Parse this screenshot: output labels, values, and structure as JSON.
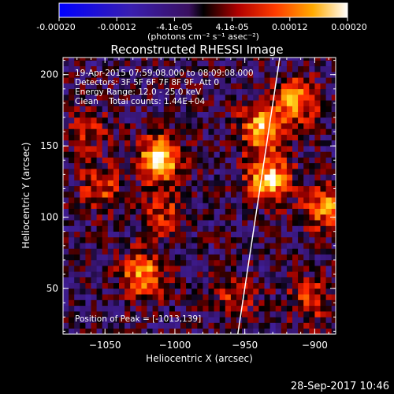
{
  "colorbar": {
    "tick_labels": [
      "-0.00020",
      "-0.00012",
      "-4.1e-05",
      "4.1e-05",
      "0.00012",
      "0.00020"
    ],
    "min": -0.0002,
    "max": 0.0002,
    "unit_label": "(photons cm⁻² s⁻¹ asec⁻²)"
  },
  "chart_data": {
    "type": "heatmap",
    "title": "Reconstructed RHESSI Image",
    "xlabel": "Heliocentric X (arcsec)",
    "ylabel": "Heliocentric Y (arcsec)",
    "xlim": [
      -1080,
      -885
    ],
    "ylim": [
      18,
      212
    ],
    "x_ticks": [
      -1050,
      -1000,
      -950,
      -900
    ],
    "x_tick_labels": [
      "−1050",
      "−1000",
      "−950",
      "−900"
    ],
    "y_ticks": [
      50,
      100,
      150,
      200
    ],
    "y_tick_labels": [
      "50",
      "100",
      "150",
      "200"
    ],
    "pixel_size_arcsec": 4,
    "colormap": "heat (blue → purple → black → red → orange → yellow → white)",
    "info_lines": [
      "19-Apr-2015 07:59:08.000 to 08:09:08.000",
      "Detectors: 3F 5F 6F 7F 8F 9F, Att 0",
      "Energy Range: 12.0 - 25.0 keV",
      "Clean    Total counts: 1.44E+04"
    ],
    "peak_label": "Position of Peak = [-1013,139]",
    "peak_position": [
      -1013,
      139
    ],
    "sources": [
      {
        "x": -1013,
        "y": 139,
        "intensity": 0.0002
      },
      {
        "x": -935,
        "y": 125,
        "intensity": 0.00019
      },
      {
        "x": -940,
        "y": 160,
        "intensity": 0.00017
      },
      {
        "x": -915,
        "y": 180,
        "intensity": 0.00015
      },
      {
        "x": -1025,
        "y": 58,
        "intensity": 0.00015
      },
      {
        "x": -893,
        "y": 105,
        "intensity": 0.00014
      },
      {
        "x": -1055,
        "y": 120,
        "intensity": 0.0001
      },
      {
        "x": -1010,
        "y": 100,
        "intensity": 9e-05
      },
      {
        "x": -960,
        "y": 40,
        "intensity": 8e-05
      },
      {
        "x": -905,
        "y": 40,
        "intensity": 9e-05
      },
      {
        "x": -1065,
        "y": 160,
        "intensity": 7e-05
      }
    ],
    "limb_line": [
      [
        -955,
        18
      ],
      [
        -925,
        212
      ]
    ]
  },
  "timestamp": "28-Sep-2017 10:46"
}
